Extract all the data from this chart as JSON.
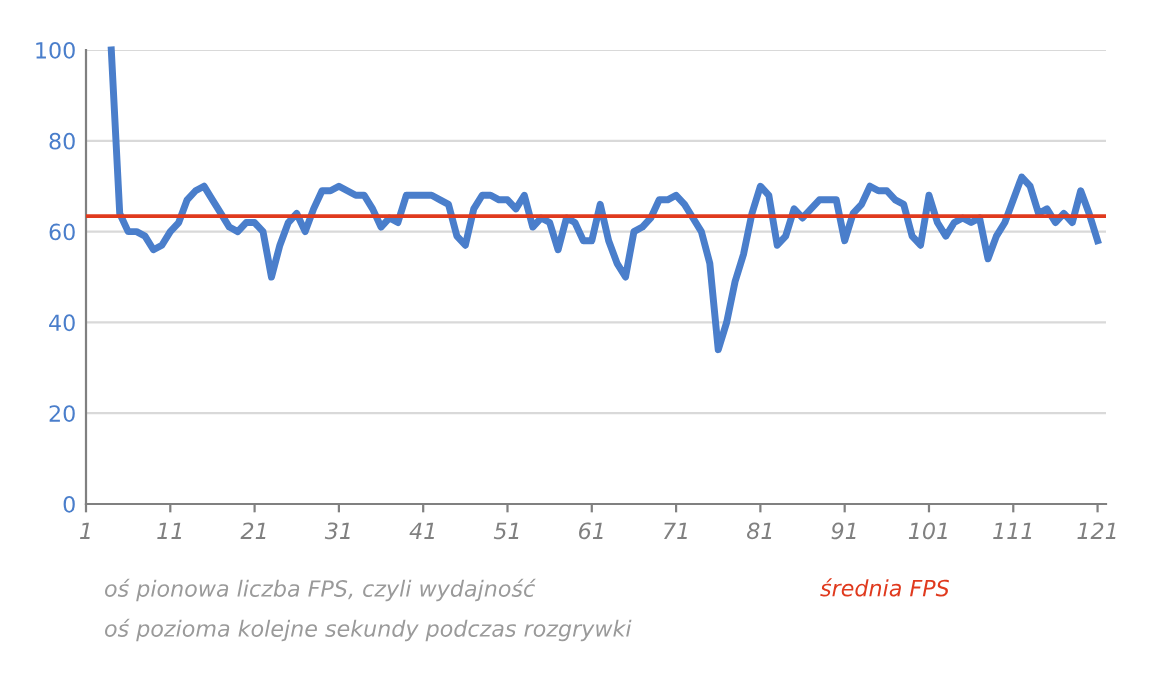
{
  "chart_data": {
    "type": "line",
    "x": [
      4,
      5,
      6,
      7,
      8,
      9,
      10,
      11,
      12,
      13,
      14,
      15,
      16,
      17,
      18,
      19,
      20,
      21,
      22,
      23,
      24,
      25,
      26,
      27,
      28,
      29,
      30,
      31,
      32,
      33,
      34,
      35,
      36,
      37,
      38,
      39,
      40,
      41,
      42,
      43,
      44,
      45,
      46,
      47,
      48,
      49,
      50,
      51,
      52,
      53,
      54,
      55,
      56,
      57,
      58,
      59,
      60,
      61,
      62,
      63,
      64,
      65,
      66,
      67,
      68,
      69,
      70,
      71,
      72,
      73,
      74,
      75,
      76,
      77,
      78,
      79,
      80,
      81,
      82,
      83,
      84,
      85,
      86,
      87,
      88,
      89,
      90,
      91,
      92,
      93,
      94,
      95,
      96,
      97,
      98,
      99,
      100,
      101,
      102,
      103,
      104,
      105,
      106,
      107,
      108,
      109,
      110,
      111,
      112,
      113,
      114,
      115,
      116,
      117,
      118,
      119,
      120,
      121
    ],
    "series": [
      {
        "color": "#4a7ecb",
        "values": [
          100,
          64,
          60,
          60,
          59,
          56,
          57,
          60,
          62,
          67,
          69,
          70,
          67,
          64,
          61,
          60,
          62,
          62,
          60,
          50,
          57,
          62,
          64,
          60,
          65,
          69,
          69,
          70,
          69,
          68,
          68,
          65,
          61,
          63,
          62,
          68,
          68,
          68,
          68,
          67,
          66,
          59,
          57,
          65,
          68,
          68,
          67,
          67,
          65,
          68,
          61,
          63,
          62,
          56,
          63,
          62,
          58,
          58,
          66,
          58,
          53,
          50,
          60,
          61,
          63,
          67,
          67,
          68,
          66,
          63,
          60,
          53,
          34,
          40,
          49,
          55,
          64,
          70,
          68,
          57,
          59,
          65,
          63,
          65,
          67,
          67,
          67,
          58,
          64,
          66,
          70,
          69,
          69,
          67,
          66,
          59,
          57,
          68,
          62,
          59,
          62,
          63,
          62,
          63,
          54,
          59,
          62,
          67,
          72,
          70,
          64,
          65,
          62,
          64,
          62,
          69,
          64,
          58
        ]
      }
    ],
    "xlim": [
      1,
      122
    ],
    "ylim": [
      0,
      100
    ],
    "xticks": [
      1,
      11,
      21,
      31,
      41,
      51,
      61,
      71,
      81,
      91,
      101,
      111,
      121
    ],
    "yticks": [
      0,
      20,
      40,
      60,
      80,
      100
    ],
    "grid": "y",
    "legend": false,
    "marker": "none",
    "line_style": "solid",
    "ref_lines": [
      {
        "axis": "y",
        "value": 63.4,
        "label": "średnia FPS",
        "color": "#e03a1e"
      }
    ],
    "annotations": [
      "oś pionowa liczba FPS, czyli wydajność",
      "oś pozioma kolejne sekundy podczas rozgrywki"
    ]
  }
}
